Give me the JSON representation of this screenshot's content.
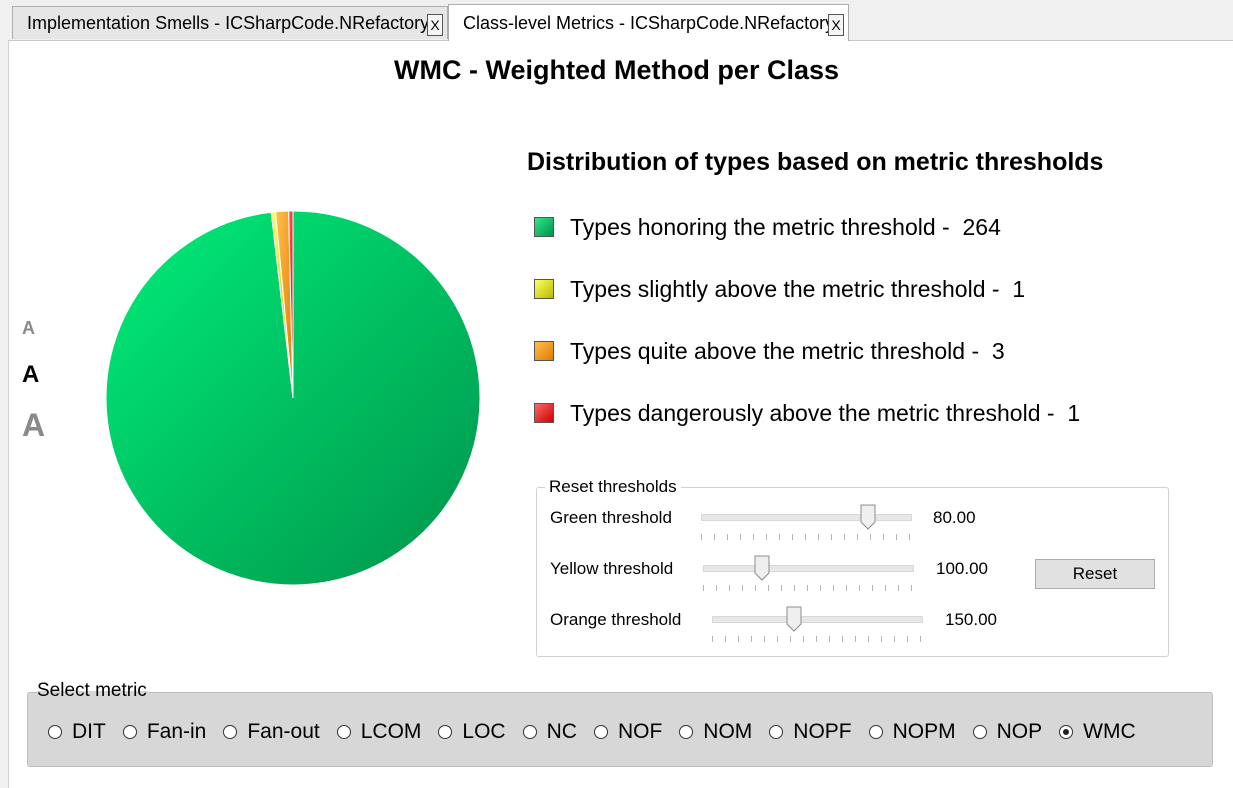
{
  "tabs": [
    {
      "label": "Implementation Smells - ICSharpCode.NRefactory",
      "close_label": "X",
      "active": false
    },
    {
      "label": "Class-level Metrics - ICSharpCode.NRefactory",
      "close_label": "X",
      "active": true
    }
  ],
  "title": "WMC - Weighted Method per Class",
  "font_size_buttons": [
    "A",
    "A",
    "A"
  ],
  "chart_data": {
    "type": "pie",
    "title": "Distribution of types based on metric thresholds",
    "slices": [
      {
        "label": "Types honoring the metric threshold - ",
        "value": 264,
        "color": "#00c466"
      },
      {
        "label": "Types slightly above the metric threshold - ",
        "value": 1,
        "color": "#e6e62e"
      },
      {
        "label": "Types quite above the metric threshold - ",
        "value": 3,
        "color": "#f5a623"
      },
      {
        "label": "Types dangerously above the metric threshold - ",
        "value": 1,
        "color": "#ee2222"
      }
    ],
    "legend_placement": "right"
  },
  "thresholds": {
    "group_label": "Reset thresholds",
    "items": [
      {
        "label": "Green threshold",
        "value": "80.00",
        "slider_fraction": 0.8
      },
      {
        "label": "Yellow threshold",
        "value": "100.00",
        "slider_fraction": 0.28
      },
      {
        "label": "Orange threshold",
        "value": "150.00",
        "slider_fraction": 0.39
      }
    ],
    "reset_label": "Reset"
  },
  "metrics": {
    "group_label": "Select metric",
    "options": [
      "DIT",
      "Fan-in",
      "Fan-out",
      "LCOM",
      "LOC",
      "NC",
      "NOF",
      "NOM",
      "NOPF",
      "NOPM",
      "NOP",
      "WMC"
    ],
    "selected": "WMC"
  }
}
